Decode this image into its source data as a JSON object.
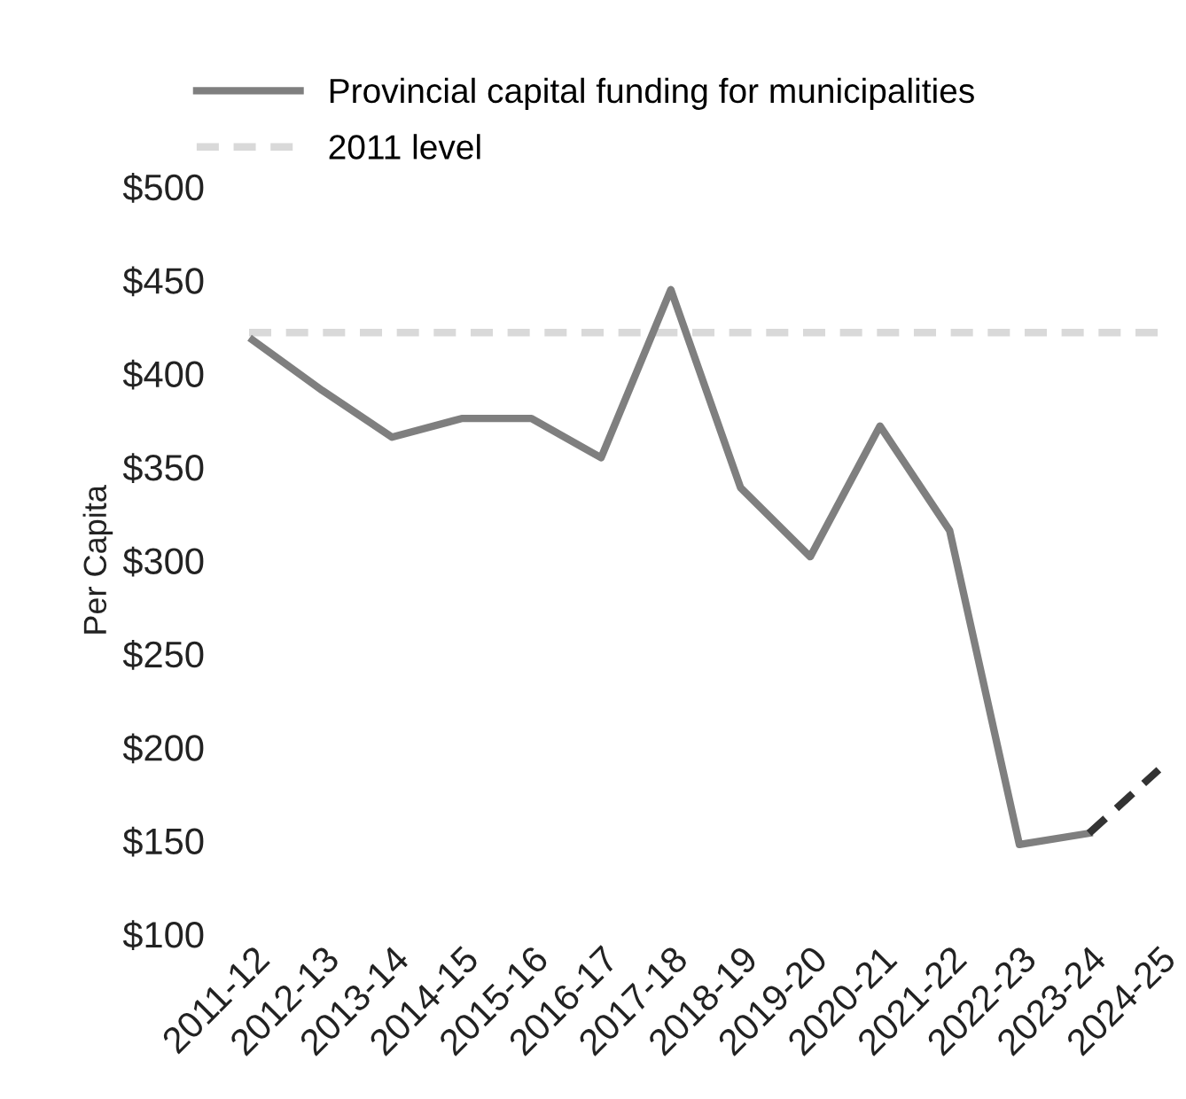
{
  "chart_data": {
    "type": "line",
    "ylabel": "Per Capita",
    "categories": [
      "2011-12",
      "2012-13",
      "2013-14",
      "2014-15",
      "2015-16",
      "2016-17",
      "2017-18",
      "2018-19",
      "2019-20",
      "2020-21",
      "2021-22",
      "2022-23",
      "2023-24",
      "2024-25"
    ],
    "series": [
      {
        "name": "Provincial capital funding for municipalities",
        "color": "#7f7f7f",
        "values": [
          418,
          391,
          366,
          376,
          376,
          355,
          445,
          339,
          302,
          372,
          316,
          148,
          154,
          null
        ]
      },
      {
        "color": "#333333",
        "line_style": "dashed",
        "values": [
          null,
          null,
          null,
          null,
          null,
          null,
          null,
          null,
          null,
          null,
          null,
          null,
          154,
          188
        ]
      }
    ],
    "ref_lines": [
      {
        "axis": "y",
        "value": 422,
        "label": "2011 level",
        "color": "#d9d9d9",
        "line_style": "dashed"
      }
    ],
    "ylim": [
      100,
      500
    ],
    "yticks": [
      {
        "value": 100,
        "label": "$100"
      },
      {
        "value": 150,
        "label": "$150"
      },
      {
        "value": 200,
        "label": "$200"
      },
      {
        "value": 250,
        "label": "$250"
      },
      {
        "value": 300,
        "label": "$300"
      },
      {
        "value": 350,
        "label": "$350"
      },
      {
        "value": 400,
        "label": "$400"
      },
      {
        "value": 450,
        "label": "$450"
      },
      {
        "value": 500,
        "label": "$500"
      }
    ],
    "legend": "top left",
    "grid": false
  }
}
